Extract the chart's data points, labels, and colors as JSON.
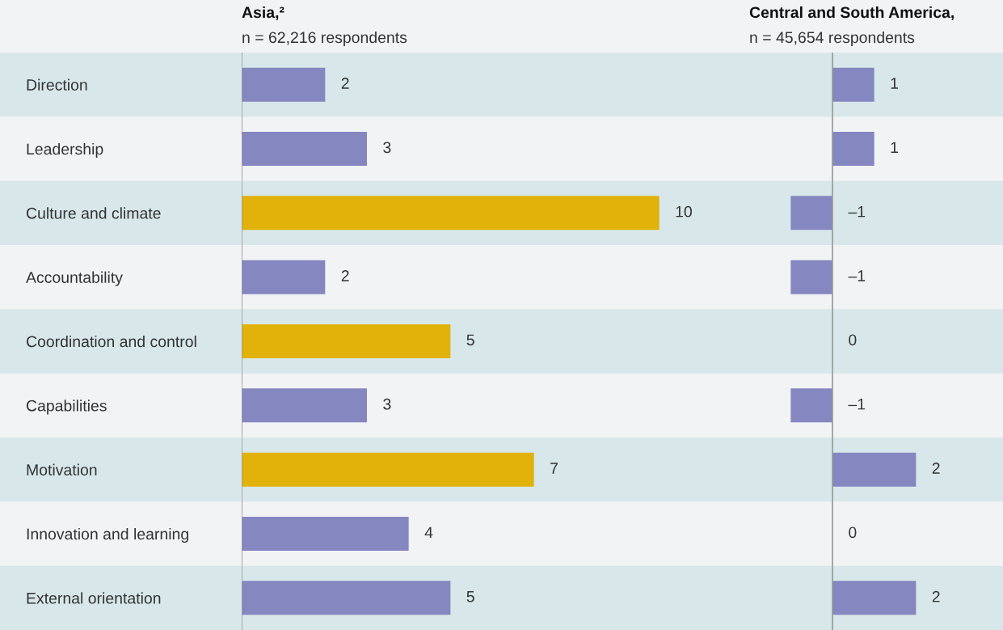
{
  "chart_data": [
    {
      "type": "bar",
      "orientation": "horizontal",
      "title": "Asia,²",
      "subtitle": "n = 62,216 respondents",
      "categories": [
        "Direction",
        "Leadership",
        "Culture and climate",
        "Accountability",
        "Coordination and control",
        "Capabilities",
        "Motivation",
        "Innovation and learning",
        "External orientation"
      ],
      "values": [
        2,
        3,
        10,
        2,
        5,
        3,
        7,
        4,
        5
      ],
      "colors": [
        "#8587c0",
        "#8587c0",
        "#e0b20a",
        "#8587c0",
        "#e0b20a",
        "#8587c0",
        "#e0b20a",
        "#8587c0",
        "#8587c0"
      ],
      "value_labels": [
        "2",
        "3",
        "10",
        "2",
        "5",
        "3",
        "7",
        "4",
        "5"
      ],
      "tick_labels": "y",
      "grid": false,
      "ref_lines": [
        {
          "axis": "x",
          "value": 0,
          "color": "#999999"
        }
      ]
    },
    {
      "type": "bar",
      "orientation": "horizontal",
      "title": "Central and South America,",
      "subtitle": "n = 45,654 respondents",
      "values": [
        1,
        1,
        -1,
        -1,
        0,
        -1,
        2,
        0,
        2
      ],
      "colors": [
        "#8587c0",
        "#8587c0",
        "#8587c0",
        "#8587c0",
        "#8587c0",
        "#8587c0",
        "#8587c0",
        "#8587c0",
        "#8587c0"
      ],
      "value_labels": [
        "1",
        "1",
        "–1",
        "–1",
        "0",
        "–1",
        "2",
        "0",
        "2"
      ],
      "tick_labels": false,
      "grid": false,
      "ref_lines": [
        {
          "axis": "x",
          "value": 0,
          "color": "#999999"
        }
      ]
    }
  ]
}
